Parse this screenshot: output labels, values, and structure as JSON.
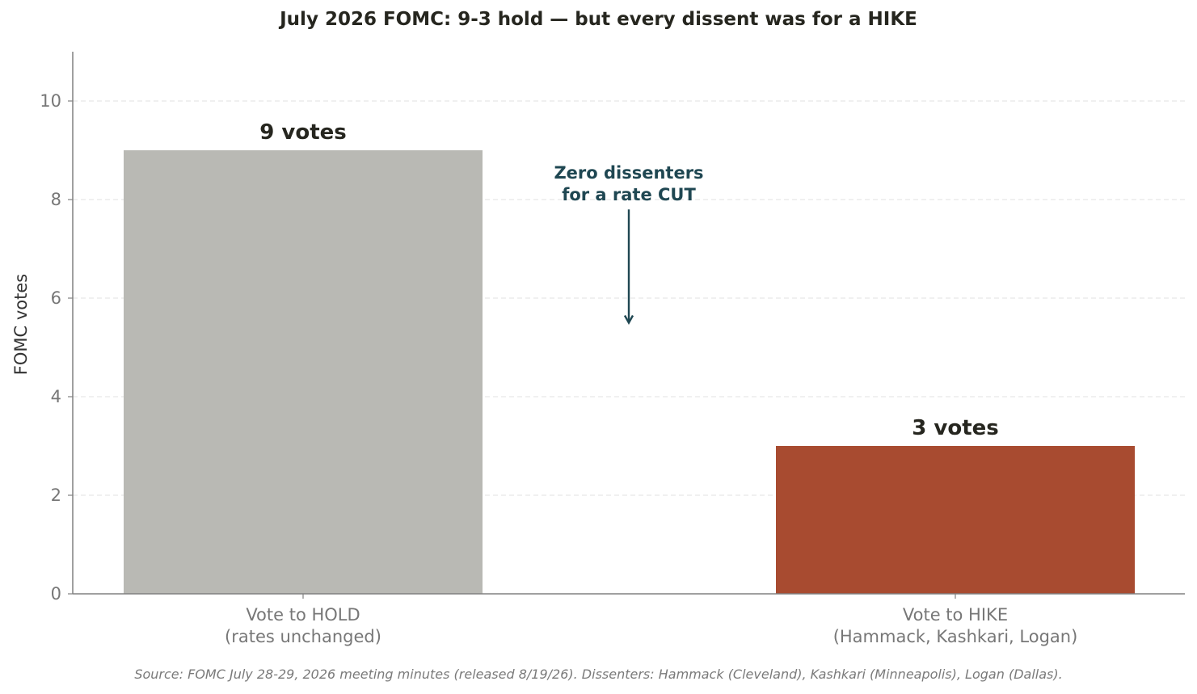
{
  "chart_data": {
    "type": "bar",
    "title": "July 2026 FOMC: 9-3 hold — but every dissent was for a HIKE",
    "ylabel": "FOMC votes",
    "xlabel": "",
    "ylim": [
      0,
      11
    ],
    "yticks": [
      0,
      2,
      4,
      6,
      8,
      10
    ],
    "grid": true,
    "categories": [
      [
        "Vote to HOLD",
        "(rates unchanged)"
      ],
      [
        "Vote to HIKE",
        "(Hammack, Kashkari, Logan)"
      ]
    ],
    "values": [
      9,
      3
    ],
    "value_labels": [
      "9 votes",
      "3 votes"
    ],
    "colors": [
      "#b9b9b4",
      "#a84b30"
    ],
    "annotation": {
      "text": [
        "Zero dissenters",
        "for a rate CUT"
      ],
      "color": "#1f4752",
      "arrow_from_y": 7.8,
      "arrow_to_y": 5.5
    },
    "source": "Source: FOMC July 28-29, 2026 meeting minutes (released 8/19/26). Dissenters: Hammack (Cleveland), Kashkari (Minneapolis), Logan (Dallas)."
  }
}
